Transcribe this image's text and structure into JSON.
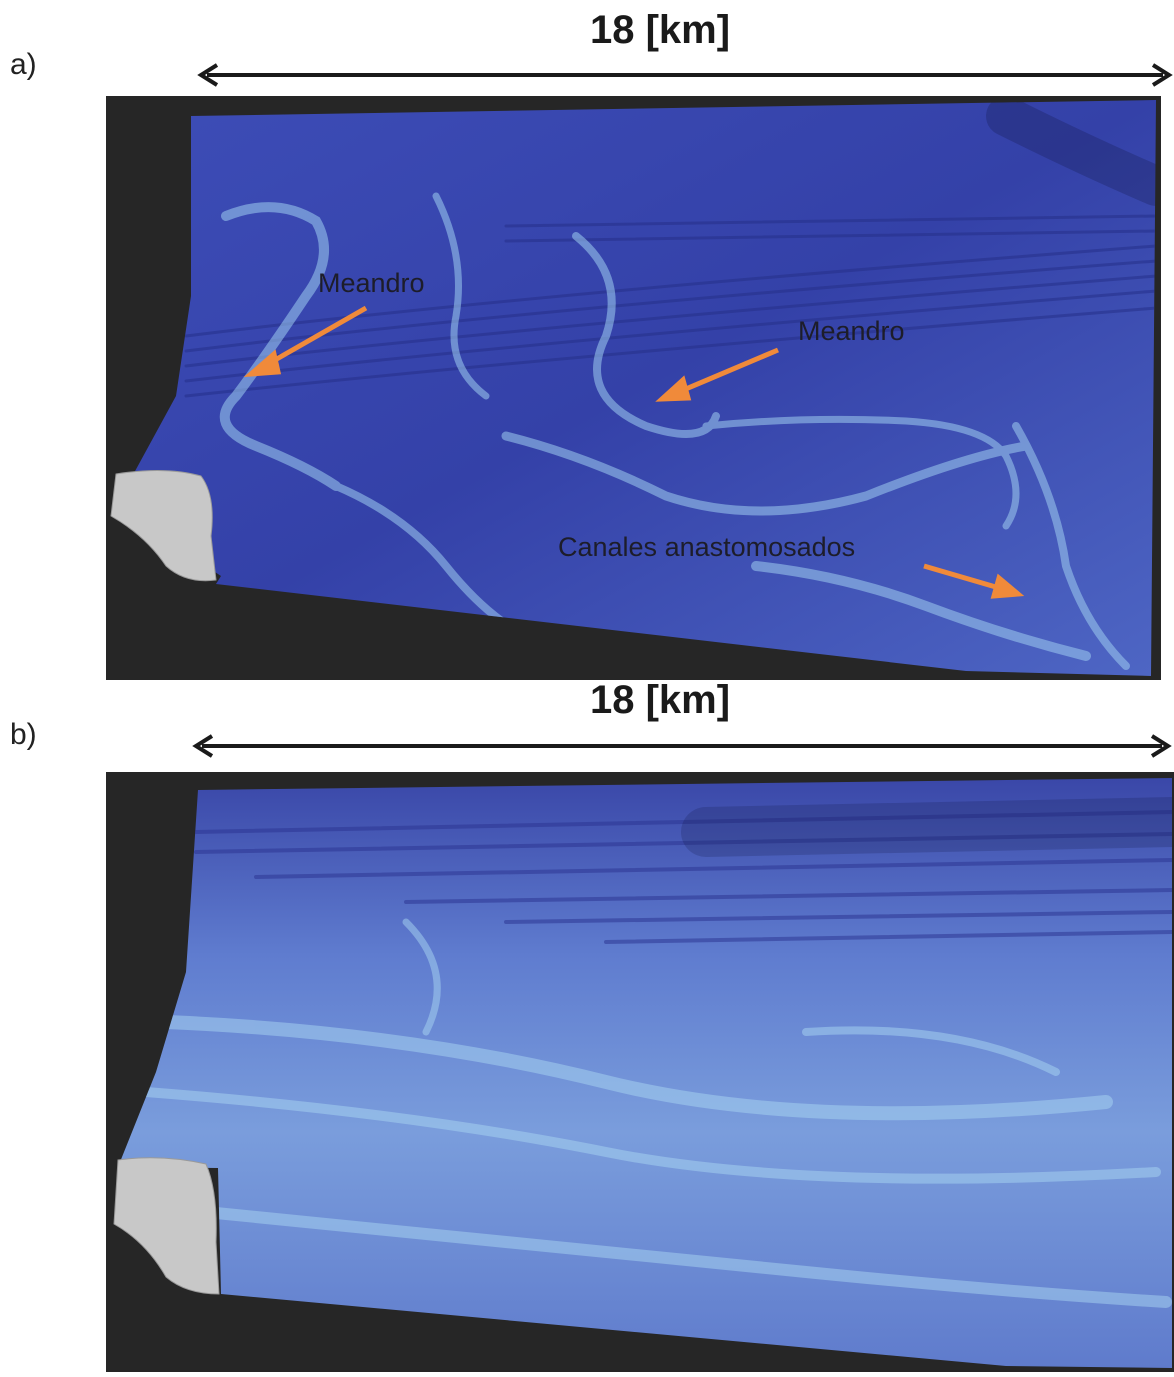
{
  "panels": [
    {
      "label": "a)",
      "scale_text": "18 [km]",
      "annotations": [
        {
          "text": "Meandro"
        },
        {
          "text": "Meandro"
        },
        {
          "text": "Canales anastomosados"
        }
      ]
    },
    {
      "label": "b)",
      "scale_text": "18 [km]",
      "annotations": []
    }
  ],
  "colors": {
    "background_dark": "#262626",
    "map_blue_deep": "#2f3b9a",
    "map_blue_mid": "#4a5bc4",
    "map_blue_light": "#8fb6e8",
    "channel_highlight": "#a8d4f0",
    "gray_patch": "#c9c9c9",
    "arrow_orange": "#f08a3a",
    "scale_arrow": "#1a1a1a"
  }
}
